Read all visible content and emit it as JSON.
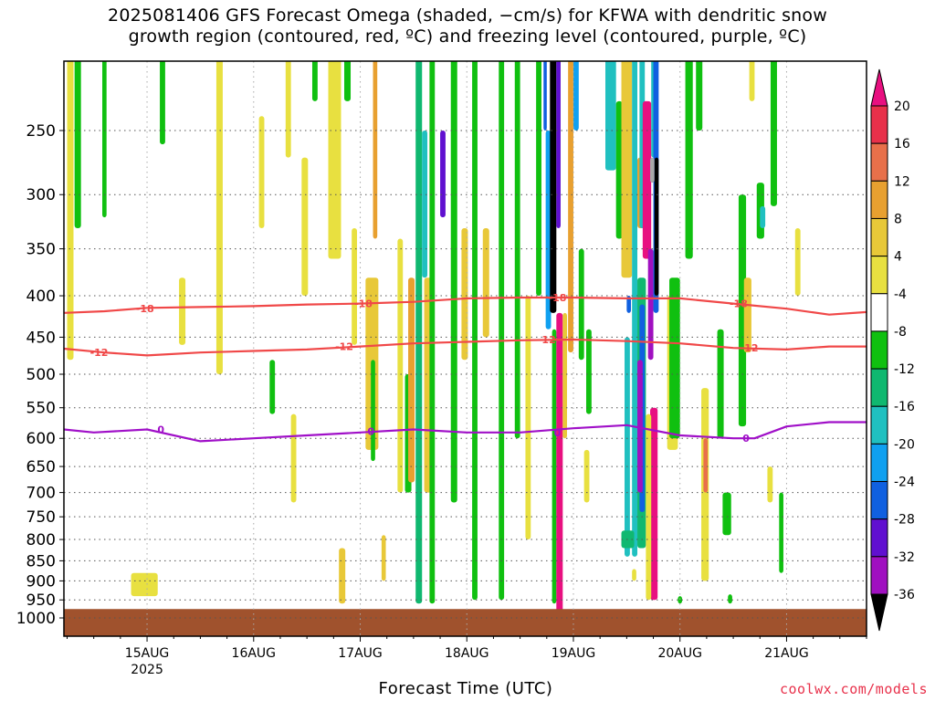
{
  "title": {
    "line1": "2025081406 GFS Forecast Omega (shaded, −cm/s) for KFWA with dendritic snow",
    "line2": "growth region (contoured, red, ºC) and freezing level (contoured, purple, ºC)"
  },
  "footer": {
    "xaxis_title": "Forecast Time (UTC)",
    "credit": "coolwx.com/models"
  },
  "chart_data": {
    "type": "heatmap",
    "x_range_days": [
      14.22,
      21.75
    ],
    "y_axis": {
      "scale": "log",
      "range_hpa": [
        1000,
        200
      ],
      "reversed": true
    },
    "x_ticks": [
      {
        "day": 15,
        "label": "15AUG",
        "sublabel": "2025"
      },
      {
        "day": 16,
        "label": "16AUG"
      },
      {
        "day": 17,
        "label": "17AUG"
      },
      {
        "day": 18,
        "label": "18AUG"
      },
      {
        "day": 19,
        "label": "19AUG"
      },
      {
        "day": 20,
        "label": "20AUG"
      },
      {
        "day": 21,
        "label": "21AUG"
      }
    ],
    "y_ticks": [
      250,
      300,
      350,
      400,
      450,
      500,
      550,
      600,
      650,
      700,
      750,
      800,
      850,
      900,
      950,
      1000
    ],
    "grid": true,
    "colorbar": {
      "levels": [
        20,
        16,
        12,
        8,
        4,
        -4,
        -8,
        -12,
        -16,
        -20,
        -24,
        -28,
        -32,
        -36
      ],
      "colors": [
        "#e8304a",
        "#e8704a",
        "#e8a030",
        "#e8c838",
        "#e8e040",
        "#ffffff",
        "#10c010",
        "#10b870",
        "#20c0c0",
        "#10a0f0",
        "#1060e0",
        "#6010d0",
        "#a010c0",
        "#a8a8a8",
        "#000000"
      ],
      "overflow_top_color": "#e81080"
    },
    "contours": [
      {
        "label": "-18",
        "color": "#f04848",
        "x": [
          14.22,
          14.6,
          15.0,
          15.5,
          16.0,
          16.5,
          17.0,
          17.5,
          18.0,
          18.5,
          19.0,
          19.5,
          20.0,
          20.5,
          21.0,
          21.4,
          21.75
        ],
        "p": [
          420,
          418,
          414,
          413,
          412,
          410,
          409,
          407,
          403,
          402,
          402,
          403,
          403,
          409,
          415,
          422,
          419
        ]
      },
      {
        "label": "-12",
        "color": "#f04848",
        "x": [
          14.22,
          14.6,
          15.0,
          15.5,
          16.0,
          16.5,
          17.0,
          17.5,
          18.0,
          18.5,
          19.0,
          19.5,
          20.0,
          20.5,
          21.0,
          21.4,
          21.75
        ],
        "p": [
          465,
          470,
          474,
          470,
          468,
          466,
          462,
          458,
          456,
          454,
          453,
          455,
          458,
          464,
          466,
          462,
          462
        ]
      },
      {
        "label": "0",
        "color": "#a010c8",
        "x": [
          14.22,
          14.5,
          15.0,
          15.5,
          16.0,
          16.5,
          17.0,
          17.5,
          18.0,
          18.5,
          19.0,
          19.5,
          20.0,
          20.5,
          20.7,
          21.0,
          21.4,
          21.75
        ],
        "p": [
          585,
          590,
          585,
          605,
          600,
          595,
          590,
          585,
          590,
          590,
          583,
          578,
          595,
          600,
          600,
          580,
          573,
          573
        ]
      }
    ],
    "contour_labels": [
      {
        "text": "-18",
        "x": 14.98,
        "p": 415,
        "color": "#f04848"
      },
      {
        "text": "-18",
        "x": 17.03,
        "p": 409,
        "color": "#f04848"
      },
      {
        "text": "-18",
        "x": 18.85,
        "p": 402,
        "color": "#f04848"
      },
      {
        "text": "-18",
        "x": 20.55,
        "p": 409,
        "color": "#f04848"
      },
      {
        "text": "-12",
        "x": 14.55,
        "p": 470,
        "color": "#f04848"
      },
      {
        "text": "-12",
        "x": 16.85,
        "p": 462,
        "color": "#f04848"
      },
      {
        "text": "-12",
        "x": 18.75,
        "p": 453,
        "color": "#f04848"
      },
      {
        "text": "-12",
        "x": 20.65,
        "p": 464,
        "color": "#f04848"
      },
      {
        "text": "0",
        "x": 15.13,
        "p": 585,
        "color": "#a010c8"
      },
      {
        "text": "0",
        "x": 17.1,
        "p": 588,
        "color": "#a010c8"
      },
      {
        "text": "0",
        "x": 18.85,
        "p": 590,
        "color": "#a010c8"
      },
      {
        "text": "0",
        "x": 20.62,
        "p": 600,
        "color": "#a010c8"
      }
    ],
    "shaded_regions": [
      {
        "x": 14.25,
        "w": 0.06,
        "p1": 180,
        "p2": 480,
        "c": 4
      },
      {
        "x": 14.32,
        "w": 0.06,
        "p1": 180,
        "p2": 330,
        "c": 6
      },
      {
        "x": 14.58,
        "w": 0.04,
        "p1": 200,
        "p2": 320,
        "c": 6
      },
      {
        "x": 15.12,
        "w": 0.05,
        "p1": 180,
        "p2": 260,
        "c": 6
      },
      {
        "x": 14.85,
        "w": 0.25,
        "p1": 880,
        "p2": 940,
        "c": 4
      },
      {
        "x": 15.3,
        "w": 0.06,
        "p1": 380,
        "p2": 460,
        "c": 4
      },
      {
        "x": 15.65,
        "w": 0.06,
        "p1": 200,
        "p2": 500,
        "c": 4
      },
      {
        "x": 16.05,
        "w": 0.05,
        "p1": 240,
        "p2": 330,
        "c": 4
      },
      {
        "x": 16.15,
        "w": 0.05,
        "p1": 480,
        "p2": 560,
        "c": 6
      },
      {
        "x": 16.3,
        "w": 0.05,
        "p1": 180,
        "p2": 270,
        "c": 4
      },
      {
        "x": 16.35,
        "w": 0.05,
        "p1": 560,
        "p2": 720,
        "c": 4
      },
      {
        "x": 16.45,
        "w": 0.06,
        "p1": 270,
        "p2": 400,
        "c": 4
      },
      {
        "x": 16.55,
        "w": 0.05,
        "p1": 180,
        "p2": 230,
        "c": 6
      },
      {
        "x": 16.7,
        "w": 0.12,
        "p1": 180,
        "p2": 360,
        "c": 4
      },
      {
        "x": 16.85,
        "w": 0.06,
        "p1": 180,
        "p2": 230,
        "c": 6
      },
      {
        "x": 16.92,
        "w": 0.05,
        "p1": 330,
        "p2": 460,
        "c": 4
      },
      {
        "x": 17.05,
        "w": 0.12,
        "p1": 380,
        "p2": 620,
        "c": 3
      },
      {
        "x": 17.1,
        "w": 0.04,
        "p1": 480,
        "p2": 640,
        "c": 6
      },
      {
        "x": 17.12,
        "w": 0.04,
        "p1": 180,
        "p2": 340,
        "c": 2
      },
      {
        "x": 16.8,
        "w": 0.06,
        "p1": 820,
        "p2": 960,
        "c": 3
      },
      {
        "x": 17.2,
        "w": 0.04,
        "p1": 790,
        "p2": 900,
        "c": 3
      },
      {
        "x": 17.35,
        "w": 0.05,
        "p1": 340,
        "p2": 700,
        "c": 4
      },
      {
        "x": 17.42,
        "w": 0.06,
        "p1": 500,
        "p2": 700,
        "c": 6
      },
      {
        "x": 17.45,
        "w": 0.06,
        "p1": 380,
        "p2": 680,
        "c": 2
      },
      {
        "x": 17.52,
        "w": 0.06,
        "p1": 200,
        "p2": 960,
        "c": 7
      },
      {
        "x": 17.58,
        "w": 0.05,
        "p1": 250,
        "p2": 380,
        "c": 8
      },
      {
        "x": 17.6,
        "w": 0.08,
        "p1": 380,
        "p2": 700,
        "c": 3
      },
      {
        "x": 17.65,
        "w": 0.05,
        "p1": 200,
        "p2": 960,
        "c": 6
      },
      {
        "x": 17.75,
        "w": 0.05,
        "p1": 250,
        "p2": 320,
        "c": 11
      },
      {
        "x": 17.85,
        "w": 0.06,
        "p1": 180,
        "p2": 720,
        "c": 6
      },
      {
        "x": 17.95,
        "w": 0.06,
        "p1": 330,
        "p2": 480,
        "c": 3
      },
      {
        "x": 18.05,
        "w": 0.05,
        "p1": 180,
        "p2": 950,
        "c": 6
      },
      {
        "x": 18.15,
        "w": 0.06,
        "p1": 330,
        "p2": 450,
        "c": 3
      },
      {
        "x": 18.3,
        "w": 0.05,
        "p1": 180,
        "p2": 950,
        "c": 6
      },
      {
        "x": 18.45,
        "w": 0.05,
        "p1": 180,
        "p2": 600,
        "c": 6
      },
      {
        "x": 18.55,
        "w": 0.05,
        "p1": 400,
        "p2": 800,
        "c": 4
      },
      {
        "x": 18.65,
        "w": 0.05,
        "p1": 180,
        "p2": 400,
        "c": 6
      },
      {
        "x": 18.72,
        "w": 0.03,
        "p1": 180,
        "p2": 250,
        "c": 10
      },
      {
        "x": 18.74,
        "w": 0.05,
        "p1": 250,
        "p2": 440,
        "c": 9
      },
      {
        "x": 18.78,
        "w": 0.06,
        "p1": 180,
        "p2": 420,
        "c": 14
      },
      {
        "x": 18.84,
        "w": 0.04,
        "p1": 180,
        "p2": 330,
        "c": 11
      },
      {
        "x": 18.8,
        "w": 0.04,
        "p1": 440,
        "p2": 960,
        "c": 6
      },
      {
        "x": 18.84,
        "w": 0.06,
        "p1": 420,
        "p2": 990,
        "c": 15
      },
      {
        "x": 18.9,
        "w": 0.04,
        "p1": 420,
        "p2": 600,
        "c": 3
      },
      {
        "x": 18.95,
        "w": 0.05,
        "p1": 180,
        "p2": 470,
        "c": 2
      },
      {
        "x": 19.0,
        "w": 0.05,
        "p1": 180,
        "p2": 250,
        "c": 9
      },
      {
        "x": 19.05,
        "w": 0.05,
        "p1": 350,
        "p2": 480,
        "c": 6
      },
      {
        "x": 19.12,
        "w": 0.05,
        "p1": 440,
        "p2": 560,
        "c": 6
      },
      {
        "x": 19.1,
        "w": 0.05,
        "p1": 620,
        "p2": 720,
        "c": 4
      },
      {
        "x": 19.3,
        "w": 0.1,
        "p1": 200,
        "p2": 280,
        "c": 8
      },
      {
        "x": 19.4,
        "w": 0.06,
        "p1": 230,
        "p2": 340,
        "c": 6
      },
      {
        "x": 19.45,
        "w": 0.1,
        "p1": 180,
        "p2": 380,
        "c": 3
      },
      {
        "x": 19.5,
        "w": 0.04,
        "p1": 400,
        "p2": 420,
        "c": 10
      },
      {
        "x": 19.55,
        "w": 0.05,
        "p1": 180,
        "p2": 840,
        "c": 8
      },
      {
        "x": 19.48,
        "w": 0.05,
        "p1": 450,
        "p2": 840,
        "c": 8
      },
      {
        "x": 19.6,
        "w": 0.08,
        "p1": 270,
        "p2": 330,
        "c": 2
      },
      {
        "x": 19.62,
        "w": 0.05,
        "p1": 180,
        "p2": 330,
        "c": 8
      },
      {
        "x": 19.6,
        "w": 0.08,
        "p1": 380,
        "p2": 820,
        "c": 7
      },
      {
        "x": 19.62,
        "w": 0.05,
        "p1": 410,
        "p2": 740,
        "c": 10
      },
      {
        "x": 19.6,
        "w": 0.05,
        "p1": 480,
        "p2": 700,
        "c": 12
      },
      {
        "x": 19.65,
        "w": 0.08,
        "p1": 230,
        "p2": 360,
        "c": 15
      },
      {
        "x": 19.7,
        "w": 0.05,
        "p1": 350,
        "p2": 480,
        "c": 12
      },
      {
        "x": 19.73,
        "w": 0.06,
        "p1": 180,
        "p2": 270,
        "c": 8
      },
      {
        "x": 19.75,
        "w": 0.05,
        "p1": 200,
        "p2": 420,
        "c": 10
      },
      {
        "x": 19.76,
        "w": 0.04,
        "p1": 270,
        "p2": 400,
        "c": 14
      },
      {
        "x": 19.72,
        "w": 0.04,
        "p1": 270,
        "p2": 290,
        "c": 13
      },
      {
        "x": 19.72,
        "w": 0.07,
        "p1": 550,
        "p2": 950,
        "c": 15
      },
      {
        "x": 19.68,
        "w": 0.05,
        "p1": 560,
        "p2": 950,
        "c": 4
      },
      {
        "x": 19.88,
        "w": 0.1,
        "p1": 400,
        "p2": 620,
        "c": 4
      },
      {
        "x": 19.9,
        "w": 0.1,
        "p1": 380,
        "p2": 600,
        "c": 6
      },
      {
        "x": 20.05,
        "w": 0.07,
        "p1": 180,
        "p2": 360,
        "c": 6
      },
      {
        "x": 20.15,
        "w": 0.06,
        "p1": 200,
        "p2": 250,
        "c": 6
      },
      {
        "x": 20.2,
        "w": 0.07,
        "p1": 520,
        "p2": 900,
        "c": 4
      },
      {
        "x": 20.22,
        "w": 0.04,
        "p1": 600,
        "p2": 700,
        "c": 1
      },
      {
        "x": 20.35,
        "w": 0.06,
        "p1": 440,
        "p2": 600,
        "c": 6
      },
      {
        "x": 20.4,
        "w": 0.08,
        "p1": 700,
        "p2": 790,
        "c": 6
      },
      {
        "x": 20.55,
        "w": 0.07,
        "p1": 300,
        "p2": 580,
        "c": 6
      },
      {
        "x": 20.6,
        "w": 0.07,
        "p1": 380,
        "p2": 470,
        "c": 3
      },
      {
        "x": 20.65,
        "w": 0.05,
        "p1": 190,
        "p2": 230,
        "c": 4
      },
      {
        "x": 20.72,
        "w": 0.07,
        "p1": 290,
        "p2": 340,
        "c": 6
      },
      {
        "x": 20.75,
        "w": 0.05,
        "p1": 310,
        "p2": 330,
        "c": 8
      },
      {
        "x": 20.85,
        "w": 0.06,
        "p1": 200,
        "p2": 310,
        "c": 6
      },
      {
        "x": 20.93,
        "w": 0.04,
        "p1": 700,
        "p2": 880,
        "c": 6
      },
      {
        "x": 21.08,
        "w": 0.05,
        "p1": 330,
        "p2": 400,
        "c": 4
      },
      {
        "x": 20.82,
        "w": 0.05,
        "p1": 650,
        "p2": 720,
        "c": 4
      },
      {
        "x": 19.45,
        "w": 0.12,
        "p1": 780,
        "p2": 820,
        "c": 7
      },
      {
        "x": 19.55,
        "w": 0.04,
        "p1": 870,
        "p2": 900,
        "c": 4
      },
      {
        "x": 19.98,
        "w": 0.04,
        "p1": 940,
        "p2": 960,
        "c": 6
      },
      {
        "x": 20.45,
        "w": 0.04,
        "p1": 935,
        "p2": 960,
        "c": 6
      }
    ],
    "ground": {
      "p_from": 975,
      "color": "#a0522d"
    }
  }
}
